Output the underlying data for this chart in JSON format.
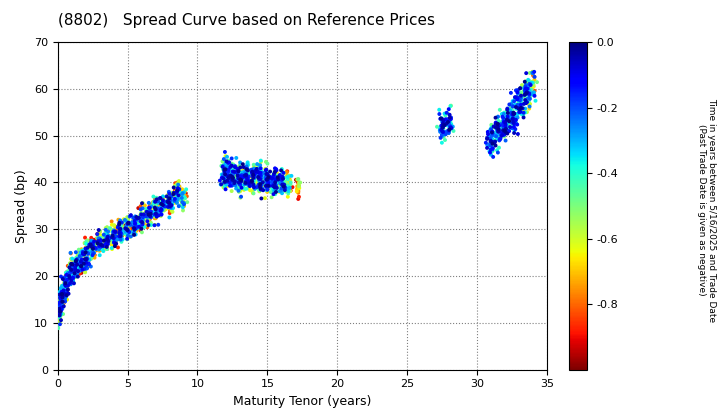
{
  "title": "(8802)   Spread Curve based on Reference Prices",
  "xlabel": "Maturity Tenor (years)",
  "ylabel": "Spread (bp)",
  "colorbar_label_line1": "Time in years between 5/16/2025 and Trade Date",
  "colorbar_label_line2": "(Past Trade Date is given as negative)",
  "xlim": [
    0,
    35
  ],
  "ylim": [
    0,
    70
  ],
  "xticks": [
    0,
    5,
    10,
    15,
    20,
    25,
    30,
    35
  ],
  "yticks": [
    0,
    10,
    20,
    30,
    40,
    50,
    60,
    70
  ],
  "cmap": "jet_r",
  "clim": [
    -1.0,
    0.0
  ],
  "cticks": [
    0.0,
    -0.2,
    -0.4,
    -0.6,
    -0.8
  ],
  "point_groups": [
    {
      "x_center": 0.15,
      "y_center": 12,
      "x_spread": 0.06,
      "y_spread": 1.2,
      "n": 60,
      "c_range": [
        -0.01,
        -0.95
      ]
    },
    {
      "x_center": 0.3,
      "y_center": 15,
      "x_spread": 0.08,
      "y_spread": 1.5,
      "n": 80,
      "c_range": [
        -0.01,
        -0.95
      ]
    },
    {
      "x_center": 0.5,
      "y_center": 17,
      "x_spread": 0.08,
      "y_spread": 1.2,
      "n": 60,
      "c_range": [
        -0.01,
        -0.95
      ]
    },
    {
      "x_center": 0.7,
      "y_center": 19,
      "x_spread": 0.08,
      "y_spread": 1.2,
      "n": 50,
      "c_range": [
        -0.01,
        -0.95
      ]
    },
    {
      "x_center": 1.0,
      "y_center": 21,
      "x_spread": 0.1,
      "y_spread": 1.5,
      "n": 80,
      "c_range": [
        -0.01,
        -0.95
      ]
    },
    {
      "x_center": 1.3,
      "y_center": 22,
      "x_spread": 0.1,
      "y_spread": 1.2,
      "n": 60,
      "c_range": [
        -0.01,
        -0.95
      ]
    },
    {
      "x_center": 1.6,
      "y_center": 23,
      "x_spread": 0.1,
      "y_spread": 1.2,
      "n": 60,
      "c_range": [
        -0.01,
        -0.95
      ]
    },
    {
      "x_center": 2.0,
      "y_center": 24.5,
      "x_spread": 0.12,
      "y_spread": 1.5,
      "n": 80,
      "c_range": [
        -0.01,
        -0.95
      ]
    },
    {
      "x_center": 2.5,
      "y_center": 26,
      "x_spread": 0.12,
      "y_spread": 1.2,
      "n": 60,
      "c_range": [
        -0.01,
        -0.95
      ]
    },
    {
      "x_center": 3.0,
      "y_center": 27,
      "x_spread": 0.12,
      "y_spread": 1.2,
      "n": 60,
      "c_range": [
        -0.01,
        -0.95
      ]
    },
    {
      "x_center": 3.5,
      "y_center": 27.8,
      "x_spread": 0.12,
      "y_spread": 1.2,
      "n": 60,
      "c_range": [
        -0.01,
        -0.95
      ]
    },
    {
      "x_center": 4.0,
      "y_center": 28.5,
      "x_spread": 0.12,
      "y_spread": 1.2,
      "n": 60,
      "c_range": [
        -0.01,
        -0.95
      ]
    },
    {
      "x_center": 4.5,
      "y_center": 29.5,
      "x_spread": 0.12,
      "y_spread": 1.2,
      "n": 60,
      "c_range": [
        -0.01,
        -0.95
      ]
    },
    {
      "x_center": 5.0,
      "y_center": 30.2,
      "x_spread": 0.12,
      "y_spread": 1.2,
      "n": 60,
      "c_range": [
        -0.01,
        -0.95
      ]
    },
    {
      "x_center": 5.5,
      "y_center": 31,
      "x_spread": 0.12,
      "y_spread": 1.2,
      "n": 60,
      "c_range": [
        -0.01,
        -0.95
      ]
    },
    {
      "x_center": 6.0,
      "y_center": 32,
      "x_spread": 0.12,
      "y_spread": 1.2,
      "n": 60,
      "c_range": [
        -0.01,
        -0.95
      ]
    },
    {
      "x_center": 6.5,
      "y_center": 33,
      "x_spread": 0.12,
      "y_spread": 1.2,
      "n": 60,
      "c_range": [
        -0.01,
        -0.95
      ]
    },
    {
      "x_center": 7.0,
      "y_center": 34,
      "x_spread": 0.12,
      "y_spread": 1.2,
      "n": 60,
      "c_range": [
        -0.01,
        -0.95
      ]
    },
    {
      "x_center": 7.5,
      "y_center": 35,
      "x_spread": 0.12,
      "y_spread": 1.2,
      "n": 60,
      "c_range": [
        -0.01,
        -0.95
      ]
    },
    {
      "x_center": 8.0,
      "y_center": 36,
      "x_spread": 0.12,
      "y_spread": 1.2,
      "n": 60,
      "c_range": [
        -0.01,
        -0.95
      ]
    },
    {
      "x_center": 8.5,
      "y_center": 37.5,
      "x_spread": 0.12,
      "y_spread": 1.2,
      "n": 60,
      "c_range": [
        -0.01,
        -0.95
      ]
    },
    {
      "x_center": 9.0,
      "y_center": 37,
      "x_spread": 0.12,
      "y_spread": 1.2,
      "n": 40,
      "c_range": [
        -0.2,
        -0.95
      ]
    },
    {
      "x_center": 12.0,
      "y_center": 42,
      "x_spread": 0.15,
      "y_spread": 1.8,
      "n": 100,
      "c_range": [
        -0.01,
        -0.7
      ]
    },
    {
      "x_center": 12.5,
      "y_center": 41.5,
      "x_spread": 0.12,
      "y_spread": 1.5,
      "n": 80,
      "c_range": [
        -0.01,
        -0.7
      ]
    },
    {
      "x_center": 13.0,
      "y_center": 41,
      "x_spread": 0.12,
      "y_spread": 1.5,
      "n": 80,
      "c_range": [
        -0.01,
        -0.7
      ]
    },
    {
      "x_center": 13.5,
      "y_center": 41,
      "x_spread": 0.12,
      "y_spread": 1.5,
      "n": 80,
      "c_range": [
        -0.01,
        -0.7
      ]
    },
    {
      "x_center": 14.0,
      "y_center": 41,
      "x_spread": 0.12,
      "y_spread": 1.5,
      "n": 80,
      "c_range": [
        -0.01,
        -0.7
      ]
    },
    {
      "x_center": 14.5,
      "y_center": 40.5,
      "x_spread": 0.12,
      "y_spread": 1.5,
      "n": 80,
      "c_range": [
        -0.01,
        -0.7
      ]
    },
    {
      "x_center": 15.0,
      "y_center": 40.5,
      "x_spread": 0.12,
      "y_spread": 1.5,
      "n": 80,
      "c_range": [
        -0.01,
        -0.7
      ]
    },
    {
      "x_center": 15.5,
      "y_center": 40,
      "x_spread": 0.12,
      "y_spread": 1.5,
      "n": 80,
      "c_range": [
        -0.01,
        -0.7
      ]
    },
    {
      "x_center": 16.0,
      "y_center": 40,
      "x_spread": 0.12,
      "y_spread": 1.2,
      "n": 60,
      "c_range": [
        -0.01,
        -0.7
      ]
    },
    {
      "x_center": 16.5,
      "y_center": 39.5,
      "x_spread": 0.12,
      "y_spread": 1.2,
      "n": 40,
      "c_range": [
        -0.3,
        -0.9
      ]
    },
    {
      "x_center": 17.2,
      "y_center": 39,
      "x_spread": 0.1,
      "y_spread": 1.0,
      "n": 20,
      "c_range": [
        -0.5,
        -0.95
      ]
    },
    {
      "x_center": 27.5,
      "y_center": 52,
      "x_spread": 0.12,
      "y_spread": 1.5,
      "n": 50,
      "c_range": [
        -0.01,
        -0.5
      ]
    },
    {
      "x_center": 28.0,
      "y_center": 52.5,
      "x_spread": 0.12,
      "y_spread": 1.5,
      "n": 40,
      "c_range": [
        -0.01,
        -0.5
      ]
    },
    {
      "x_center": 31.0,
      "y_center": 49,
      "x_spread": 0.15,
      "y_spread": 1.8,
      "n": 60,
      "c_range": [
        -0.01,
        -0.5
      ]
    },
    {
      "x_center": 31.5,
      "y_center": 51,
      "x_spread": 0.15,
      "y_spread": 1.8,
      "n": 60,
      "c_range": [
        -0.01,
        -0.5
      ]
    },
    {
      "x_center": 32.0,
      "y_center": 52,
      "x_spread": 0.15,
      "y_spread": 1.8,
      "n": 60,
      "c_range": [
        -0.01,
        -0.5
      ]
    },
    {
      "x_center": 32.5,
      "y_center": 54,
      "x_spread": 0.15,
      "y_spread": 1.8,
      "n": 60,
      "c_range": [
        -0.01,
        -0.5
      ]
    },
    {
      "x_center": 33.0,
      "y_center": 57,
      "x_spread": 0.15,
      "y_spread": 1.8,
      "n": 70,
      "c_range": [
        -0.01,
        -0.6
      ]
    },
    {
      "x_center": 33.5,
      "y_center": 59,
      "x_spread": 0.15,
      "y_spread": 2.0,
      "n": 70,
      "c_range": [
        -0.01,
        -0.7
      ]
    },
    {
      "x_center": 34.0,
      "y_center": 61,
      "x_spread": 0.15,
      "y_spread": 2.0,
      "n": 40,
      "c_range": [
        -0.1,
        -0.9
      ]
    }
  ]
}
